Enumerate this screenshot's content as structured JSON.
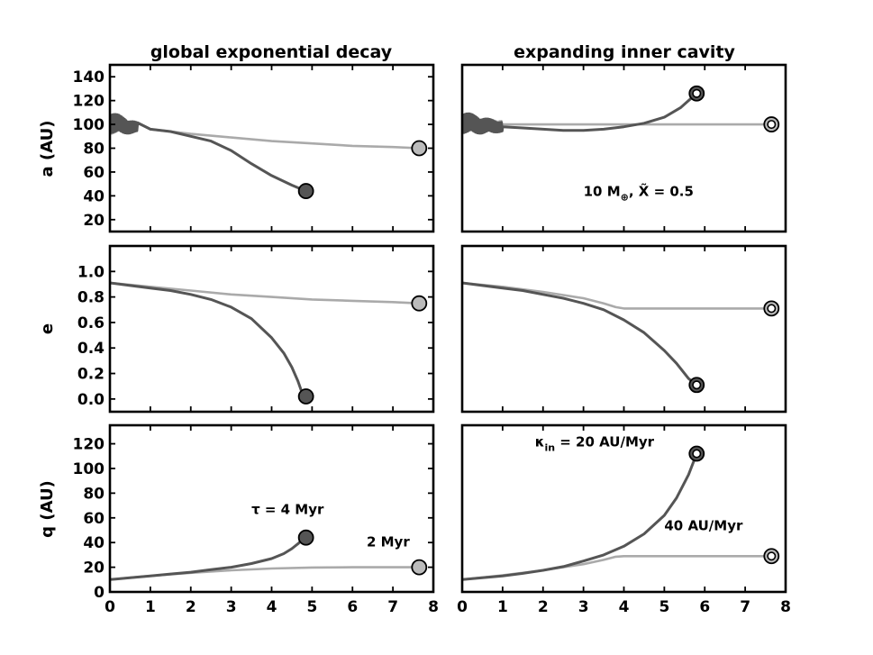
{
  "colors": {
    "dark_series": "#555555",
    "light_series": "#aaaaaa",
    "marker_dark": "#555555",
    "marker_light": "#bbbbbb",
    "axes": "#000000"
  },
  "columns": [
    {
      "title": "global exponential decay"
    },
    {
      "title": "expanding inner cavity"
    }
  ],
  "chart_data": [
    {
      "type": "line",
      "panel": "a-left",
      "title": "global exponential decay",
      "ylabel": "a (AU)",
      "xlim": [
        0,
        8
      ],
      "ylim": [
        10,
        150
      ],
      "xticks": [],
      "yticks": [
        20,
        40,
        60,
        80,
        100,
        120,
        140
      ],
      "xlabels_visible": false,
      "series": [
        {
          "style": "dark",
          "x": [
            0,
            0.5,
            1,
            1.5,
            2,
            2.5,
            3,
            3.5,
            4,
            4.5,
            4.85
          ],
          "y": [
            102,
            98,
            96,
            94,
            90,
            86,
            78,
            67,
            57,
            49,
            44
          ],
          "oscillate": {
            "x_end": 0.7,
            "amp": 9
          }
        },
        {
          "style": "light",
          "x": [
            0,
            1,
            2,
            3,
            4,
            5,
            6,
            7,
            7.65
          ],
          "y": [
            100,
            96,
            92,
            89,
            86,
            84,
            82,
            81,
            80
          ],
          "oscillate": {
            "x_end": 0.7,
            "amp": 8
          }
        }
      ],
      "markers": [
        {
          "x": 4.85,
          "y": 44,
          "style": "dark-filled"
        },
        {
          "x": 7.65,
          "y": 80,
          "style": "light-filled"
        }
      ],
      "annotations": []
    },
    {
      "type": "line",
      "panel": "a-right",
      "title": "expanding inner cavity",
      "ylabel": "",
      "xlim": [
        0,
        8
      ],
      "ylim": [
        10,
        150
      ],
      "xticks": [],
      "yticks": [],
      "xlabels_visible": false,
      "series": [
        {
          "style": "dark",
          "x": [
            0,
            0.5,
            1,
            1.5,
            2,
            2.5,
            3,
            3.5,
            4,
            4.5,
            5,
            5.4,
            5.8
          ],
          "y": [
            102,
            99,
            98,
            97,
            96,
            95,
            95,
            96,
            98,
            101,
            106,
            114,
            126
          ],
          "oscillate": {
            "x_end": 1.0,
            "amp": 9
          }
        },
        {
          "style": "light",
          "x": [
            0,
            1,
            2,
            3,
            4,
            5,
            6,
            7,
            7.65
          ],
          "y": [
            100,
            100,
            100,
            100,
            100,
            100,
            100,
            100,
            100
          ],
          "oscillate": {
            "x_end": 1.0,
            "amp": 7
          }
        }
      ],
      "markers": [
        {
          "x": 5.8,
          "y": 126,
          "style": "dark-ring"
        },
        {
          "x": 7.65,
          "y": 100,
          "style": "light-ring"
        }
      ],
      "annotations": [
        {
          "x": 3.0,
          "y": 40,
          "parts": [
            "10 M",
            "⊕",
            ", X̃ = 0.5"
          ]
        }
      ]
    },
    {
      "type": "line",
      "panel": "e-left",
      "ylabel": "e",
      "xlim": [
        0,
        8
      ],
      "ylim": [
        -0.1,
        1.2
      ],
      "xticks": [],
      "yticks": [
        0.0,
        0.2,
        0.4,
        0.6,
        0.8,
        1.0
      ],
      "ytick_labels": [
        "0.0",
        "0.2",
        "0.4",
        "0.6",
        "0.8",
        "1.0"
      ],
      "xlabels_visible": false,
      "series": [
        {
          "style": "dark",
          "x": [
            0,
            0.5,
            1,
            1.5,
            2,
            2.5,
            3,
            3.5,
            4,
            4.3,
            4.5,
            4.65,
            4.75,
            4.85
          ],
          "y": [
            0.91,
            0.89,
            0.87,
            0.85,
            0.82,
            0.78,
            0.72,
            0.63,
            0.48,
            0.36,
            0.25,
            0.14,
            0.05,
            0.02
          ]
        },
        {
          "style": "light",
          "x": [
            0,
            1,
            2,
            3,
            4,
            5,
            6,
            7,
            7.65
          ],
          "y": [
            0.91,
            0.88,
            0.85,
            0.82,
            0.8,
            0.78,
            0.77,
            0.76,
            0.75
          ]
        }
      ],
      "markers": [
        {
          "x": 4.85,
          "y": 0.02,
          "style": "dark-filled"
        },
        {
          "x": 7.65,
          "y": 0.75,
          "style": "light-filled"
        }
      ],
      "annotations": []
    },
    {
      "type": "line",
      "panel": "e-right",
      "ylabel": "",
      "xlim": [
        0,
        8
      ],
      "ylim": [
        -0.1,
        1.2
      ],
      "xticks": [],
      "yticks": [],
      "xlabels_visible": false,
      "series": [
        {
          "style": "dark",
          "x": [
            0,
            0.5,
            1,
            1.5,
            2,
            2.5,
            3,
            3.5,
            4,
            4.5,
            5,
            5.3,
            5.6,
            5.8
          ],
          "y": [
            0.91,
            0.89,
            0.87,
            0.85,
            0.82,
            0.79,
            0.75,
            0.7,
            0.62,
            0.52,
            0.38,
            0.28,
            0.16,
            0.11
          ]
        },
        {
          "style": "light",
          "x": [
            0,
            1,
            2,
            3,
            3.5,
            3.8,
            4,
            5,
            6,
            7,
            7.65
          ],
          "y": [
            0.91,
            0.88,
            0.84,
            0.79,
            0.75,
            0.72,
            0.71,
            0.71,
            0.71,
            0.71,
            0.71
          ]
        }
      ],
      "markers": [
        {
          "x": 5.8,
          "y": 0.11,
          "style": "dark-ring"
        },
        {
          "x": 7.65,
          "y": 0.71,
          "style": "light-ring"
        }
      ],
      "annotations": []
    },
    {
      "type": "line",
      "panel": "q-left",
      "ylabel": "q (AU)",
      "xlim": [
        0,
        8
      ],
      "ylim": [
        0,
        135
      ],
      "xticks": [
        0,
        1,
        2,
        3,
        4,
        5,
        6,
        7,
        8
      ],
      "yticks": [
        0,
        20,
        40,
        60,
        80,
        100,
        120
      ],
      "xlabels_visible": true,
      "series": [
        {
          "style": "dark",
          "x": [
            0,
            0.5,
            1,
            1.5,
            2,
            2.5,
            3,
            3.5,
            4,
            4.3,
            4.5,
            4.65,
            4.75,
            4.85
          ],
          "y": [
            10,
            11.5,
            13,
            14.5,
            16,
            18,
            20,
            23,
            27,
            31,
            35,
            39,
            42,
            44
          ]
        },
        {
          "style": "light",
          "x": [
            0,
            1,
            2,
            3,
            4,
            5,
            6,
            7,
            7.65
          ],
          "y": [
            10,
            13,
            15.5,
            17.5,
            19,
            19.8,
            20,
            20,
            20
          ]
        }
      ],
      "markers": [
        {
          "x": 4.85,
          "y": 44,
          "style": "dark-filled"
        },
        {
          "x": 7.65,
          "y": 20,
          "style": "light-filled"
        }
      ],
      "annotations": [
        {
          "x": 3.5,
          "y": 63,
          "parts": [
            "τ = 4 Myr"
          ]
        },
        {
          "x": 6.35,
          "y": 37,
          "parts": [
            "2 Myr"
          ]
        }
      ]
    },
    {
      "type": "line",
      "panel": "q-right",
      "ylabel": "",
      "xlim": [
        0,
        8
      ],
      "ylim": [
        0,
        135
      ],
      "xticks": [
        0,
        1,
        2,
        3,
        4,
        5,
        6,
        7,
        8
      ],
      "yticks": [],
      "xlabels_visible": true,
      "series": [
        {
          "style": "dark",
          "x": [
            0,
            0.5,
            1,
            1.5,
            2,
            2.5,
            3,
            3.5,
            4,
            4.5,
            5,
            5.3,
            5.6,
            5.8
          ],
          "y": [
            10,
            11.5,
            13,
            15,
            17.5,
            20.5,
            25,
            30,
            37,
            47,
            62,
            76,
            95,
            112
          ]
        },
        {
          "style": "light",
          "x": [
            0,
            1,
            2,
            3,
            3.5,
            3.8,
            4,
            5,
            6,
            7,
            7.65
          ],
          "y": [
            10,
            13.5,
            17.5,
            22.5,
            26,
            28.5,
            29,
            29,
            29,
            29,
            29
          ]
        }
      ],
      "markers": [
        {
          "x": 5.8,
          "y": 112,
          "style": "dark-ring"
        },
        {
          "x": 7.65,
          "y": 29,
          "style": "light-ring"
        }
      ],
      "annotations": [
        {
          "x": 1.8,
          "y": 118,
          "parts": [
            "κ",
            "in",
            " = 20 AU/Myr"
          ]
        },
        {
          "x": 5.0,
          "y": 50,
          "parts": [
            "40 AU/Myr"
          ]
        }
      ]
    }
  ]
}
